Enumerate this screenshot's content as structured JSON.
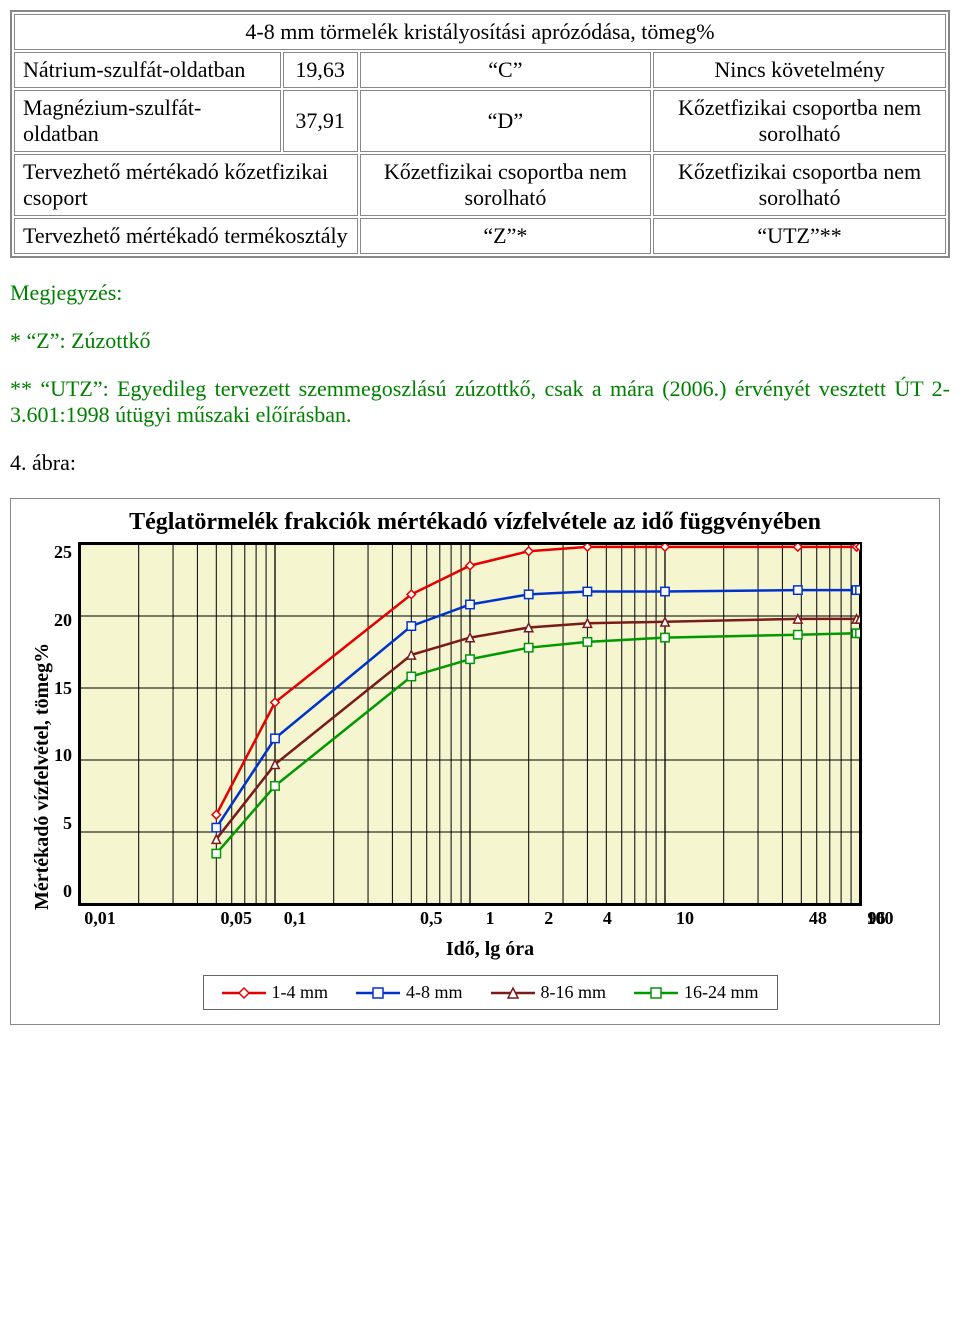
{
  "table": {
    "title": "4-8 mm törmelék kristályosítási aprózódása, tömeg%",
    "rows": [
      {
        "c1": "Nátrium-szulfát-oldatban",
        "c2": "19,63",
        "c3": "“C”",
        "c4": "Nincs követelmény"
      },
      {
        "c1": "Magnézium-szulfát-oldatban",
        "c2": "37,91",
        "c3": "“D”",
        "c4": "Kőzetfizikai csoportba nem sorolható"
      }
    ],
    "row3": {
      "c12": "Tervezhető mértékadó kőzetfizikai csoport",
      "c3": "Kőzetfizikai csoportba nem sorolható",
      "c4": "Kőzetfizikai csoportba nem sorolható"
    },
    "row4": {
      "c12": "Tervezhető mértékadó termékosztály",
      "c3": "“Z”*",
      "c4": "“UTZ”**"
    }
  },
  "notes": {
    "heading": "Megjegyzés:",
    "n1": "* “Z”: Zúzottkő",
    "n2": "** “UTZ”: Egyedileg tervezett szemmegoszlású zúzottkő, csak a mára (2006.) érvényét vesztett ÚT 2-3.601:1998 útügyi műszaki előírásban.",
    "figlabel": "4. ábra:"
  },
  "chart": {
    "type": "line",
    "title": "Téglatörmelék frakciók mértékadó vízfelvétele az idő függvényében",
    "xlabel": "Idő, lg óra",
    "ylabel": "Mértékadó vízfelvétel, tömeg%",
    "background_color": "#f5f5d0",
    "grid_color": "#000000",
    "axis_line_width": 2,
    "series_line_width": 2.5,
    "marker_size": 6,
    "xscale": "log",
    "xlim": [
      0.01,
      100
    ],
    "ylim": [
      0,
      25
    ],
    "ytick_step": 5,
    "yticks": [
      0,
      5,
      10,
      15,
      20,
      25
    ],
    "xticks_major": [
      0.01,
      0.1,
      1,
      10,
      100
    ],
    "xticks_labeled": [
      {
        "v": 0.01,
        "label": "0,01"
      },
      {
        "v": 0.05,
        "label": "0,05"
      },
      {
        "v": 0.1,
        "label": "0,1"
      },
      {
        "v": 0.5,
        "label": "0,5"
      },
      {
        "v": 1,
        "label": "1"
      },
      {
        "v": 2,
        "label": "2"
      },
      {
        "v": 4,
        "label": "4"
      },
      {
        "v": 10,
        "label": "10"
      },
      {
        "v": 48,
        "label": "48"
      },
      {
        "v": 96,
        "label": "96"
      },
      {
        "v": 100,
        "label": "100"
      }
    ],
    "series": [
      {
        "name": "1-4 mm",
        "color": "#e60000",
        "marker": "diamond",
        "fill": "#ffffff",
        "points": [
          [
            0.05,
            6.2
          ],
          [
            0.1,
            14.0
          ],
          [
            0.5,
            21.5
          ],
          [
            1,
            23.5
          ],
          [
            2,
            24.5
          ],
          [
            4,
            24.8
          ],
          [
            10,
            24.8
          ],
          [
            48,
            24.8
          ],
          [
            96,
            24.8
          ],
          [
            100,
            24.8
          ]
        ]
      },
      {
        "name": "4-8 mm",
        "color": "#0033cc",
        "marker": "square",
        "fill": "#ffffff",
        "points": [
          [
            0.05,
            5.3
          ],
          [
            0.1,
            11.5
          ],
          [
            0.5,
            19.3
          ],
          [
            1,
            20.8
          ],
          [
            2,
            21.5
          ],
          [
            4,
            21.7
          ],
          [
            10,
            21.7
          ],
          [
            48,
            21.8
          ],
          [
            96,
            21.8
          ],
          [
            100,
            21.8
          ]
        ]
      },
      {
        "name": "8-16 mm",
        "color": "#7a1a1a",
        "marker": "triangle",
        "fill": "#ffffff",
        "points": [
          [
            0.05,
            4.5
          ],
          [
            0.1,
            9.7
          ],
          [
            0.5,
            17.3
          ],
          [
            1,
            18.5
          ],
          [
            2,
            19.2
          ],
          [
            4,
            19.5
          ],
          [
            10,
            19.6
          ],
          [
            48,
            19.8
          ],
          [
            96,
            19.8
          ],
          [
            100,
            19.8
          ]
        ]
      },
      {
        "name": "16-24 mm",
        "color": "#009900",
        "marker": "square",
        "fill": "#ffffff",
        "points": [
          [
            0.05,
            3.5
          ],
          [
            0.1,
            8.2
          ],
          [
            0.5,
            15.8
          ],
          [
            1,
            17.0
          ],
          [
            2,
            17.8
          ],
          [
            4,
            18.2
          ],
          [
            10,
            18.5
          ],
          [
            48,
            18.7
          ],
          [
            96,
            18.8
          ],
          [
            100,
            18.8
          ]
        ]
      }
    ],
    "legend_border_color": "#666666"
  }
}
